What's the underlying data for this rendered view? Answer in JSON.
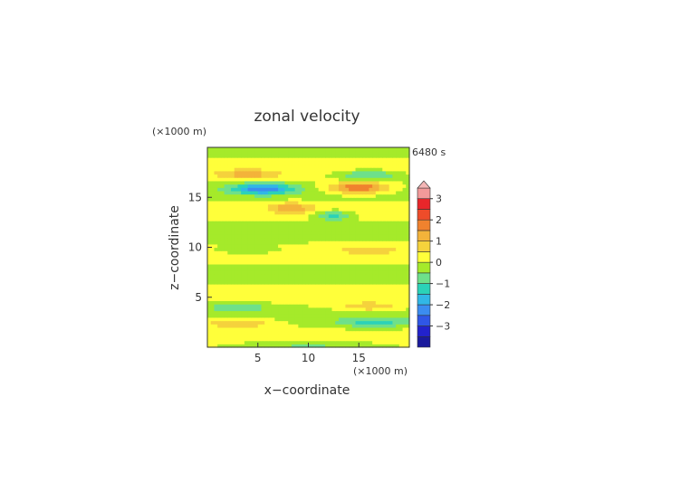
{
  "chart_data": {
    "type": "heatmap",
    "title": "zonal velocity",
    "time_label": "6480 s",
    "xlabel": "x−coordinate",
    "ylabel": "z−coordinate",
    "x_unit": "(×1000 m)",
    "y_unit": "(×1000 m)",
    "xlim": [
      0,
      20
    ],
    "ylim": [
      0,
      20
    ],
    "x_ticks": [
      5,
      10,
      15
    ],
    "y_ticks": [
      5,
      10,
      15
    ],
    "colorbar": {
      "levels": [
        -3.5,
        -3.0,
        -2.5,
        -2.0,
        -1.5,
        -1.0,
        -0.5,
        0.0,
        0.5,
        1.0,
        1.5,
        2.0,
        2.5,
        3.0,
        3.5
      ],
      "colors": [
        "#1a1a9c",
        "#2222cc",
        "#2f56e6",
        "#3b8cf0",
        "#31b7e6",
        "#2bd2b8",
        "#6ee08a",
        "#a5ea2a",
        "#ffff3a",
        "#f5d23c",
        "#f3b33a",
        "#f0822e",
        "#ee4c2a",
        "#e8262a",
        "#f29a9a",
        "#f4b6b6"
      ],
      "tick_labels": [
        "3",
        "2",
        "1",
        "0",
        "−1",
        "−2",
        "−3"
      ],
      "tick_values": [
        3,
        2,
        1,
        0,
        -1,
        -2,
        -3
      ],
      "extend": "max"
    }
  }
}
